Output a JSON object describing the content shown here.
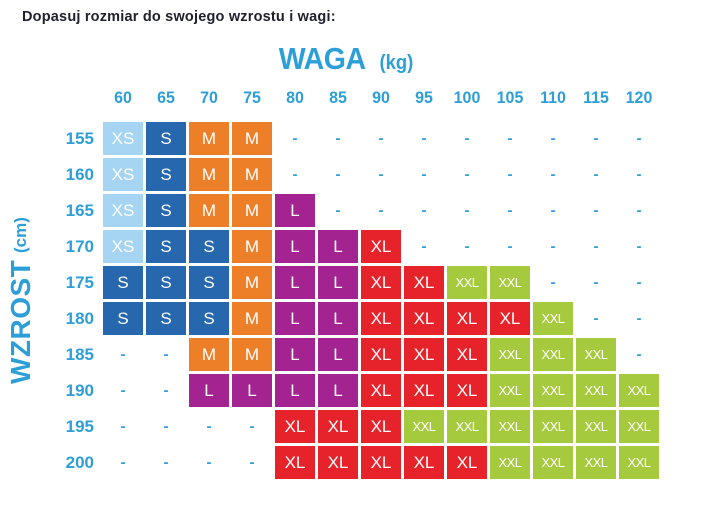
{
  "title": "Dopasuj rozmiar do swojego wzrostu i wagi:",
  "x_axis": {
    "label": "WAGA",
    "unit": "(kg)"
  },
  "y_axis": {
    "label": "WZROST",
    "unit": "(cm)"
  },
  "colors": {
    "XS": "#a5d5f2",
    "S": "#2767ae",
    "M": "#ee7f29",
    "L": "#a32491",
    "XL": "#e6222a",
    "XXL": "#a6ca3e",
    "axis_text": "#2d9fd8",
    "title_text": "#20202e",
    "cell_text": "#ffffff"
  },
  "chart_data": {
    "type": "heatmap",
    "title": "Dopasuj rozmiar do swojego wzrostu i wagi:",
    "xlabel": "WAGA (kg)",
    "ylabel": "WZROST (cm)",
    "columns": [
      "60",
      "65",
      "70",
      "75",
      "80",
      "85",
      "90",
      "95",
      "100",
      "105",
      "110",
      "115",
      "120"
    ],
    "rows": [
      "155",
      "160",
      "165",
      "170",
      "175",
      "180",
      "185",
      "190",
      "195",
      "200"
    ],
    "empty_marker": "-",
    "sizes": [
      "XS",
      "S",
      "M",
      "L",
      "XL",
      "XXL"
    ],
    "matrix": [
      [
        "XS",
        "S",
        "M",
        "M",
        "-",
        "-",
        "-",
        "-",
        "-",
        "-",
        "-",
        "-",
        "-"
      ],
      [
        "XS",
        "S",
        "M",
        "M",
        "-",
        "-",
        "-",
        "-",
        "-",
        "-",
        "-",
        "-",
        "-"
      ],
      [
        "XS",
        "S",
        "M",
        "M",
        "L",
        "-",
        "-",
        "-",
        "-",
        "-",
        "-",
        "-",
        "-"
      ],
      [
        "XS",
        "S",
        "S",
        "M",
        "L",
        "L",
        "XL",
        "-",
        "-",
        "-",
        "-",
        "-",
        "-"
      ],
      [
        "S",
        "S",
        "S",
        "M",
        "L",
        "L",
        "XL",
        "XL",
        "XXL",
        "XXL",
        "-",
        "-",
        "-"
      ],
      [
        "S",
        "S",
        "S",
        "M",
        "L",
        "L",
        "XL",
        "XL",
        "XL",
        "XL",
        "XXL",
        "-",
        "-"
      ],
      [
        "-",
        "-",
        "M",
        "M",
        "L",
        "L",
        "XL",
        "XL",
        "XL",
        "XXL",
        "XXL",
        "XXL",
        "-"
      ],
      [
        "-",
        "-",
        "L",
        "L",
        "L",
        "L",
        "XL",
        "XL",
        "XL",
        "XXL",
        "XXL",
        "XXL",
        "XXL"
      ],
      [
        "-",
        "-",
        "-",
        "-",
        "XL",
        "XL",
        "XL",
        "XXL",
        "XXL",
        "XXL",
        "XXL",
        "XXL",
        "XXL"
      ],
      [
        "-",
        "-",
        "-",
        "-",
        "XL",
        "XL",
        "XL",
        "XL",
        "XL",
        "XXL",
        "XXL",
        "XXL",
        "XXL"
      ]
    ]
  }
}
